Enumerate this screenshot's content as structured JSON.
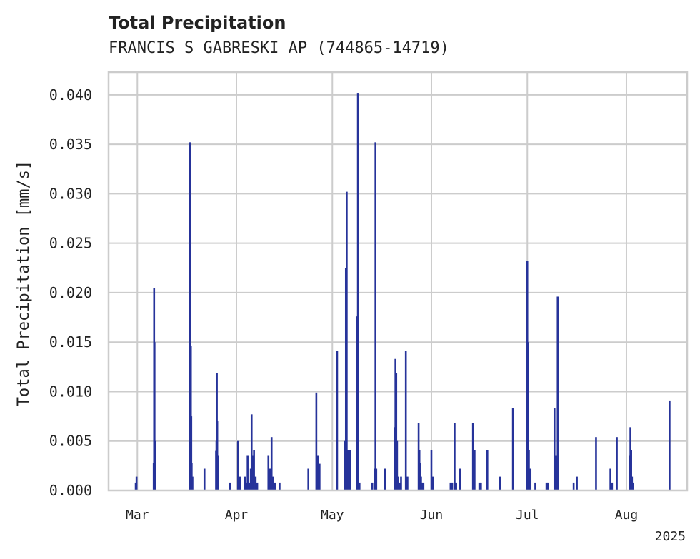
{
  "chart_data": {
    "type": "bar",
    "title": "Total Precipitation",
    "subtitle": "FRANCIS S GABRESKI AP (744865-14719)",
    "ylabel": "Total Precipitation [mm/s]",
    "xlabel": "",
    "year_label": "2025",
    "grid": true,
    "bar_color": "#26339a",
    "xlim": [
      "2025-02-20",
      "2025-08-20"
    ],
    "ylim": [
      0,
      0.0423
    ],
    "yticks": [
      0.0,
      0.005,
      0.01,
      0.015,
      0.02,
      0.025,
      0.03,
      0.035,
      0.04
    ],
    "ytick_labels": [
      "0.000",
      "0.005",
      "0.010",
      "0.015",
      "0.020",
      "0.025",
      "0.030",
      "0.035",
      "0.040"
    ],
    "xticks": [
      "2025-03-01",
      "2025-04-01",
      "2025-05-01",
      "2025-06-01",
      "2025-07-01",
      "2025-08-01"
    ],
    "xtick_labels": [
      "Mar",
      "Apr",
      "May",
      "Jun",
      "Jul",
      "Aug"
    ],
    "x": [
      "2025-02-28T12:00",
      "2025-02-28T18:00",
      "2025-03-06T03:00",
      "2025-03-06T06:00",
      "2025-03-06T09:00",
      "2025-03-06T12:00",
      "2025-03-06T15:00",
      "2025-03-17T09:00",
      "2025-03-17T12:00",
      "2025-03-17T15:00",
      "2025-03-17T18:00",
      "2025-03-17T21:00",
      "2025-03-18T00:00",
      "2025-03-18T06:00",
      "2025-03-22T00:00",
      "2025-03-25T15:00",
      "2025-03-25T18:00",
      "2025-03-25T21:00",
      "2025-03-26T00:00",
      "2025-03-26T03:00",
      "2025-03-30T00:00",
      "2025-04-01T12:00",
      "2025-04-02T03:00",
      "2025-04-03T15:00",
      "2025-04-04T00:00",
      "2025-04-04T12:00",
      "2025-04-05T00:00",
      "2025-04-05T12:00",
      "2025-04-05T18:00",
      "2025-04-06T00:00",
      "2025-04-06T12:00",
      "2025-04-07T00:00",
      "2025-04-07T12:00",
      "2025-04-11T00:00",
      "2025-04-11T12:00",
      "2025-04-12T00:00",
      "2025-04-12T12:00",
      "2025-04-13T00:00",
      "2025-04-14T12:00",
      "2025-04-23T12:00",
      "2025-04-26T00:00",
      "2025-04-26T12:00",
      "2025-04-27T00:00",
      "2025-05-02T12:00",
      "2025-05-04T21:00",
      "2025-05-05T06:00",
      "2025-05-05T12:00",
      "2025-05-05T18:00",
      "2025-05-06T00:00",
      "2025-05-06T12:00",
      "2025-05-08T15:00",
      "2025-05-09T00:00",
      "2025-05-09T12:00",
      "2025-05-13T12:00",
      "2025-05-14T06:00",
      "2025-05-14T12:00",
      "2025-05-14T18:00",
      "2025-05-17T12:00",
      "2025-05-20T12:00",
      "2025-05-20T18:00",
      "2025-05-21T00:00",
      "2025-05-21T06:00",
      "2025-05-21T12:00",
      "2025-05-22T00:00",
      "2025-05-22T12:00",
      "2025-05-24T00:00",
      "2025-05-24T12:00",
      "2025-05-28T00:00",
      "2025-05-28T06:00",
      "2025-05-28T12:00",
      "2025-05-28T18:00",
      "2025-05-29T00:00",
      "2025-05-29T12:00",
      "2025-06-01T00:00",
      "2025-06-01T12:00",
      "2025-06-07T00:00",
      "2025-06-07T12:00",
      "2025-06-08T06:00",
      "2025-06-08T18:00",
      "2025-06-10T00:00",
      "2025-06-14T00:00",
      "2025-06-14T12:00",
      "2025-06-16T00:00",
      "2025-06-16T12:00",
      "2025-06-18T12:00",
      "2025-06-22T12:00",
      "2025-06-26T12:00",
      "2025-07-01T00:00",
      "2025-07-01T06:00",
      "2025-07-01T12:00",
      "2025-07-02T00:00",
      "2025-07-03T12:00",
      "2025-07-07T00:00",
      "2025-07-07T12:00",
      "2025-07-09T12:00",
      "2025-07-10T00:00",
      "2025-07-10T12:00",
      "2025-07-15T12:00",
      "2025-07-16T12:00",
      "2025-07-22T12:00",
      "2025-07-27T00:00",
      "2025-07-27T12:00",
      "2025-07-29T00:00",
      "2025-08-02T00:00",
      "2025-08-02T06:00",
      "2025-08-02T12:00",
      "2025-08-02T18:00",
      "2025-08-03T00:00",
      "2025-08-14T12:00"
    ],
    "values": [
      0.0008,
      0.0014,
      0.0028,
      0.0205,
      0.015,
      0.005,
      0.0008,
      0.0027,
      0.0352,
      0.0325,
      0.0146,
      0.0075,
      0.0028,
      0.0014,
      0.0022,
      0.004,
      0.005,
      0.0119,
      0.007,
      0.0035,
      0.0008,
      0.005,
      0.0014,
      0.0014,
      0.0008,
      0.0035,
      0.0008,
      0.0022,
      0.0077,
      0.0035,
      0.0041,
      0.0014,
      0.0008,
      0.0035,
      0.0022,
      0.0054,
      0.0014,
      0.0008,
      0.0008,
      0.0022,
      0.0099,
      0.0035,
      0.0027,
      0.0141,
      0.005,
      0.0225,
      0.0302,
      0.0041,
      0.0041,
      0.0041,
      0.0176,
      0.0402,
      0.0008,
      0.0008,
      0.0022,
      0.0352,
      0.0022,
      0.0022,
      0.0064,
      0.0133,
      0.0119,
      0.005,
      0.0014,
      0.0008,
      0.0014,
      0.0141,
      0.0014,
      0.0068,
      0.0041,
      0.0028,
      0.0014,
      0.0008,
      0.0008,
      0.0041,
      0.0014,
      0.0008,
      0.0008,
      0.0068,
      0.0008,
      0.0022,
      0.0068,
      0.0041,
      0.0008,
      0.0008,
      0.0041,
      0.0014,
      0.0083,
      0.0232,
      0.015,
      0.0041,
      0.0022,
      0.0008,
      0.0008,
      0.0008,
      0.0083,
      0.0035,
      0.0196,
      0.0008,
      0.0014,
      0.0054,
      0.0022,
      0.0008,
      0.0054,
      0.0035,
      0.0064,
      0.0041,
      0.0014,
      0.0008,
      0.0091
    ]
  }
}
